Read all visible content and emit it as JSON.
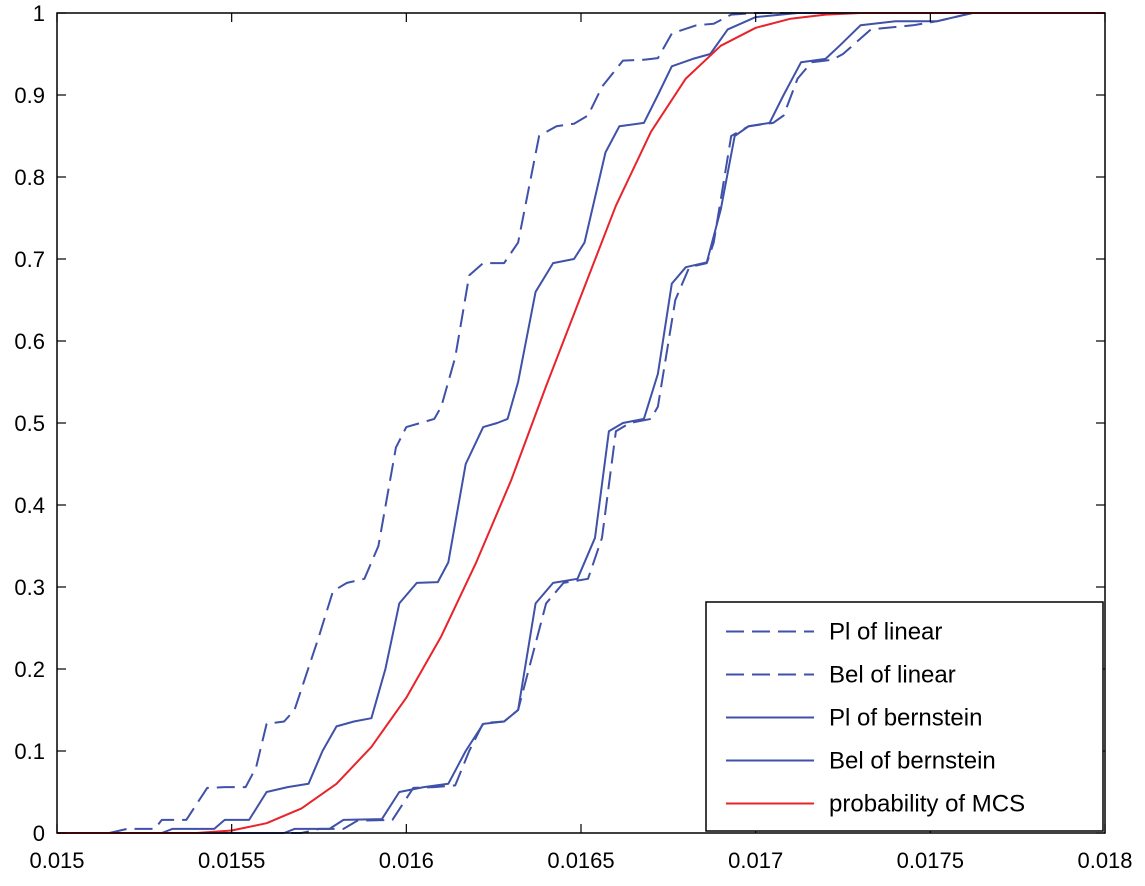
{
  "chart_data": {
    "type": "line",
    "title": "",
    "xlabel": "",
    "ylabel": "",
    "xlim": [
      0.015,
      0.018
    ],
    "ylim": [
      0,
      1
    ],
    "grid": false,
    "legend_position": "bottom-right",
    "x_ticks": [
      {
        "value": 0.015,
        "label": "0.015"
      },
      {
        "value": 0.0155,
        "label": "0.0155"
      },
      {
        "value": 0.016,
        "label": "0.016"
      },
      {
        "value": 0.0165,
        "label": "0.0165"
      },
      {
        "value": 0.017,
        "label": "0.017"
      },
      {
        "value": 0.0175,
        "label": "0.0175"
      },
      {
        "value": 0.018,
        "label": "0.018"
      }
    ],
    "y_ticks": [
      {
        "value": 0,
        "label": "0"
      },
      {
        "value": 0.1,
        "label": "0.1"
      },
      {
        "value": 0.2,
        "label": "0.2"
      },
      {
        "value": 0.3,
        "label": "0.3"
      },
      {
        "value": 0.4,
        "label": "0.4"
      },
      {
        "value": 0.5,
        "label": "0.5"
      },
      {
        "value": 0.6,
        "label": "0.6"
      },
      {
        "value": 0.7,
        "label": "0.7"
      },
      {
        "value": 0.8,
        "label": "0.8"
      },
      {
        "value": 0.9,
        "label": "0.9"
      },
      {
        "value": 1,
        "label": "1"
      }
    ],
    "series": [
      {
        "name": "Pl of linear",
        "color": "#3f51a8",
        "style": "dashed",
        "points": [
          [
            0.015,
            0
          ],
          [
            0.01515,
            0
          ],
          [
            0.0152,
            0.005
          ],
          [
            0.01528,
            0.005
          ],
          [
            0.0153,
            0.016
          ],
          [
            0.01537,
            0.016
          ],
          [
            0.01543,
            0.055
          ],
          [
            0.01548,
            0.056
          ],
          [
            0.01554,
            0.056
          ],
          [
            0.01557,
            0.08
          ],
          [
            0.0156,
            0.133
          ],
          [
            0.01565,
            0.136
          ],
          [
            0.01568,
            0.15
          ],
          [
            0.01575,
            0.24
          ],
          [
            0.01579,
            0.295
          ],
          [
            0.01583,
            0.305
          ],
          [
            0.01588,
            0.31
          ],
          [
            0.01592,
            0.35
          ],
          [
            0.01597,
            0.47
          ],
          [
            0.016,
            0.495
          ],
          [
            0.01604,
            0.5
          ],
          [
            0.01608,
            0.505
          ],
          [
            0.0161,
            0.52
          ],
          [
            0.01614,
            0.58
          ],
          [
            0.01618,
            0.68
          ],
          [
            0.01622,
            0.695
          ],
          [
            0.01628,
            0.695
          ],
          [
            0.01632,
            0.72
          ],
          [
            0.01638,
            0.85
          ],
          [
            0.01643,
            0.862
          ],
          [
            0.01648,
            0.865
          ],
          [
            0.01652,
            0.875
          ],
          [
            0.01656,
            0.91
          ],
          [
            0.01662,
            0.942
          ],
          [
            0.01668,
            0.943
          ],
          [
            0.01672,
            0.945
          ],
          [
            0.01676,
            0.975
          ],
          [
            0.01683,
            0.985
          ],
          [
            0.01688,
            0.987
          ],
          [
            0.01693,
            0.998
          ],
          [
            0.017,
            1
          ],
          [
            0.018,
            1
          ]
        ]
      },
      {
        "name": "Bel of linear",
        "color": "#3f51a8",
        "style": "dashed",
        "points": [
          [
            0.015,
            0
          ],
          [
            0.0157,
            0
          ],
          [
            0.01575,
            0.005
          ],
          [
            0.01582,
            0.005
          ],
          [
            0.01586,
            0.015
          ],
          [
            0.01596,
            0.016
          ],
          [
            0.01602,
            0.055
          ],
          [
            0.01608,
            0.056
          ],
          [
            0.01614,
            0.058
          ],
          [
            0.01618,
            0.1
          ],
          [
            0.01622,
            0.134
          ],
          [
            0.01628,
            0.136
          ],
          [
            0.01632,
            0.15
          ],
          [
            0.0164,
            0.28
          ],
          [
            0.01645,
            0.305
          ],
          [
            0.01652,
            0.31
          ],
          [
            0.01656,
            0.36
          ],
          [
            0.0166,
            0.49
          ],
          [
            0.01664,
            0.5
          ],
          [
            0.0167,
            0.505
          ],
          [
            0.01672,
            0.52
          ],
          [
            0.01677,
            0.65
          ],
          [
            0.01681,
            0.69
          ],
          [
            0.01686,
            0.695
          ],
          [
            0.01688,
            0.72
          ],
          [
            0.01693,
            0.85
          ],
          [
            0.01698,
            0.862
          ],
          [
            0.01705,
            0.866
          ],
          [
            0.01708,
            0.875
          ],
          [
            0.01712,
            0.92
          ],
          [
            0.01716,
            0.94
          ],
          [
            0.01722,
            0.943
          ],
          [
            0.01725,
            0.95
          ],
          [
            0.01733,
            0.98
          ],
          [
            0.01745,
            0.985
          ],
          [
            0.01752,
            0.99
          ],
          [
            0.01762,
            1
          ],
          [
            0.018,
            1
          ]
        ]
      },
      {
        "name": "Pl of bernstein",
        "color": "#3f51a8",
        "style": "solid",
        "points": [
          [
            0.015,
            0
          ],
          [
            0.0153,
            0
          ],
          [
            0.01533,
            0.005
          ],
          [
            0.01545,
            0.005
          ],
          [
            0.01548,
            0.016
          ],
          [
            0.01555,
            0.016
          ],
          [
            0.0156,
            0.05
          ],
          [
            0.01566,
            0.056
          ],
          [
            0.01572,
            0.06
          ],
          [
            0.01576,
            0.1
          ],
          [
            0.0158,
            0.13
          ],
          [
            0.01585,
            0.136
          ],
          [
            0.0159,
            0.14
          ],
          [
            0.01594,
            0.2
          ],
          [
            0.01598,
            0.28
          ],
          [
            0.01603,
            0.305
          ],
          [
            0.01609,
            0.306
          ],
          [
            0.01612,
            0.33
          ],
          [
            0.01617,
            0.45
          ],
          [
            0.01622,
            0.495
          ],
          [
            0.01626,
            0.5
          ],
          [
            0.01629,
            0.505
          ],
          [
            0.01632,
            0.55
          ],
          [
            0.01637,
            0.66
          ],
          [
            0.01642,
            0.695
          ],
          [
            0.01648,
            0.7
          ],
          [
            0.01651,
            0.72
          ],
          [
            0.01657,
            0.83
          ],
          [
            0.01661,
            0.862
          ],
          [
            0.01668,
            0.866
          ],
          [
            0.01672,
            0.9
          ],
          [
            0.01676,
            0.935
          ],
          [
            0.01682,
            0.944
          ],
          [
            0.01687,
            0.95
          ],
          [
            0.01692,
            0.98
          ],
          [
            0.017,
            0.995
          ],
          [
            0.01712,
            1
          ],
          [
            0.018,
            1
          ]
        ]
      },
      {
        "name": "Bel of bernstein",
        "color": "#3f51a8",
        "style": "solid",
        "points": [
          [
            0.015,
            0
          ],
          [
            0.01565,
            0
          ],
          [
            0.01568,
            0.005
          ],
          [
            0.01578,
            0.005
          ],
          [
            0.01582,
            0.016
          ],
          [
            0.01593,
            0.017
          ],
          [
            0.01598,
            0.05
          ],
          [
            0.01605,
            0.056
          ],
          [
            0.01612,
            0.06
          ],
          [
            0.01617,
            0.1
          ],
          [
            0.01622,
            0.133
          ],
          [
            0.01628,
            0.136
          ],
          [
            0.01632,
            0.15
          ],
          [
            0.01637,
            0.28
          ],
          [
            0.01642,
            0.305
          ],
          [
            0.01649,
            0.31
          ],
          [
            0.01654,
            0.36
          ],
          [
            0.01658,
            0.49
          ],
          [
            0.01662,
            0.5
          ],
          [
            0.01668,
            0.505
          ],
          [
            0.01672,
            0.56
          ],
          [
            0.01676,
            0.67
          ],
          [
            0.0168,
            0.69
          ],
          [
            0.01686,
            0.696
          ],
          [
            0.0169,
            0.76
          ],
          [
            0.01694,
            0.85
          ],
          [
            0.01698,
            0.862
          ],
          [
            0.01704,
            0.866
          ],
          [
            0.01708,
            0.9
          ],
          [
            0.01713,
            0.94
          ],
          [
            0.0172,
            0.944
          ],
          [
            0.01724,
            0.96
          ],
          [
            0.0173,
            0.985
          ],
          [
            0.0174,
            0.99
          ],
          [
            0.01752,
            0.99
          ],
          [
            0.01762,
            1
          ],
          [
            0.018,
            1
          ]
        ]
      },
      {
        "name": "probability of MCS",
        "color": "#e8232a",
        "style": "solid",
        "points": [
          [
            0.015,
            0
          ],
          [
            0.0154,
            0
          ],
          [
            0.0155,
            0.003
          ],
          [
            0.0156,
            0.012
          ],
          [
            0.0157,
            0.03
          ],
          [
            0.0158,
            0.06
          ],
          [
            0.0159,
            0.105
          ],
          [
            0.016,
            0.165
          ],
          [
            0.0161,
            0.24
          ],
          [
            0.0162,
            0.33
          ],
          [
            0.0163,
            0.43
          ],
          [
            0.0164,
            0.545
          ],
          [
            0.0165,
            0.655
          ],
          [
            0.0166,
            0.765
          ],
          [
            0.0167,
            0.855
          ],
          [
            0.0168,
            0.92
          ],
          [
            0.0169,
            0.96
          ],
          [
            0.017,
            0.982
          ],
          [
            0.0171,
            0.993
          ],
          [
            0.0172,
            0.998
          ],
          [
            0.0173,
            1
          ],
          [
            0.018,
            1
          ]
        ]
      }
    ]
  }
}
